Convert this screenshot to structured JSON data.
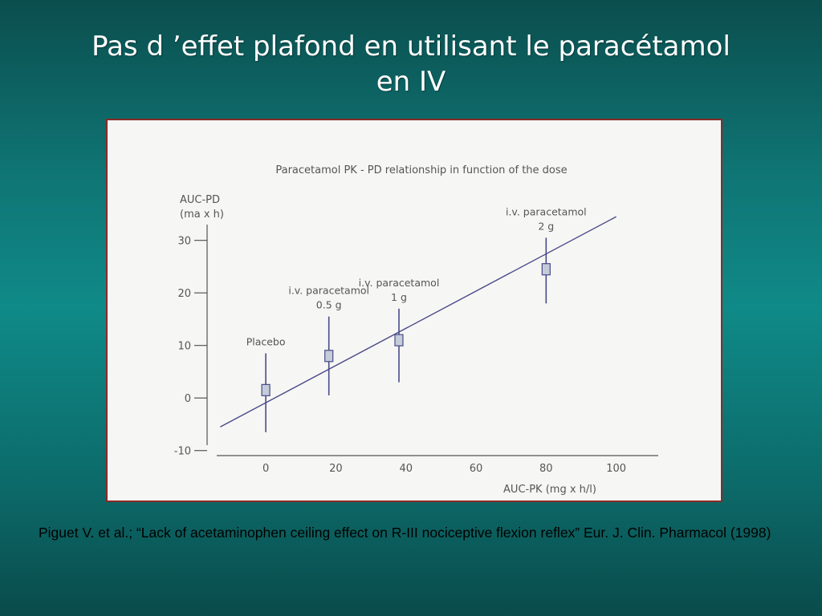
{
  "slide": {
    "title_line1": "Pas d ’effet plafond en utilisant le paracétamol",
    "title_line2": "en IV",
    "citation": "Piguet V. et al.; “Lack of acetaminophen ceiling effect on R-III nociceptive flexion reflex” Eur. J. Clin. Pharmacol (1998)"
  },
  "chart_data": {
    "type": "scatter",
    "title": "Paracetamol PK - PD relationship in function of the dose",
    "ylabel_line1": "AUC-PD",
    "ylabel_line2": "(ma x h)",
    "xlabel": "AUC-PK (mg x h/l)",
    "xlim": [
      -14,
      112
    ],
    "ylim": [
      -10.5,
      33
    ],
    "x_ticks": [
      0,
      20,
      40,
      60,
      80,
      100
    ],
    "y_ticks": [
      30,
      20,
      10,
      0,
      -10
    ],
    "x_tick_labels": [
      "0",
      "20",
      "40",
      "60",
      "80",
      "100"
    ],
    "y_tick_labels": [
      "30",
      "20",
      "10",
      "0",
      "-10"
    ],
    "points": [
      {
        "label_line1": "Placebo",
        "label_line2": "",
        "x": 0,
        "y": 1.5,
        "y_low": -6.5,
        "y_high": 8.5
      },
      {
        "label_line1": "i.v. paracetamol",
        "label_line2": "0.5 g",
        "x": 18,
        "y": 8,
        "y_low": 0.5,
        "y_high": 15.5
      },
      {
        "label_line1": "i.v. paracetamol",
        "label_line2": "1 g",
        "x": 38,
        "y": 11,
        "y_low": 3,
        "y_high": 17
      },
      {
        "label_line1": "i.v. paracetamol",
        "label_line2": "2 g",
        "x": 80,
        "y": 24.5,
        "y_low": 18,
        "y_high": 30.5
      }
    ],
    "regression_line": {
      "x": [
        -13,
        100
      ],
      "y": [
        -5.5,
        34.5
      ]
    },
    "grid": false,
    "legend": false,
    "colors": {
      "line": "#4a4a8a",
      "marker_fill": "#c4ccd8",
      "axis": "#555555",
      "panel_border": "#8a2a2a"
    }
  }
}
